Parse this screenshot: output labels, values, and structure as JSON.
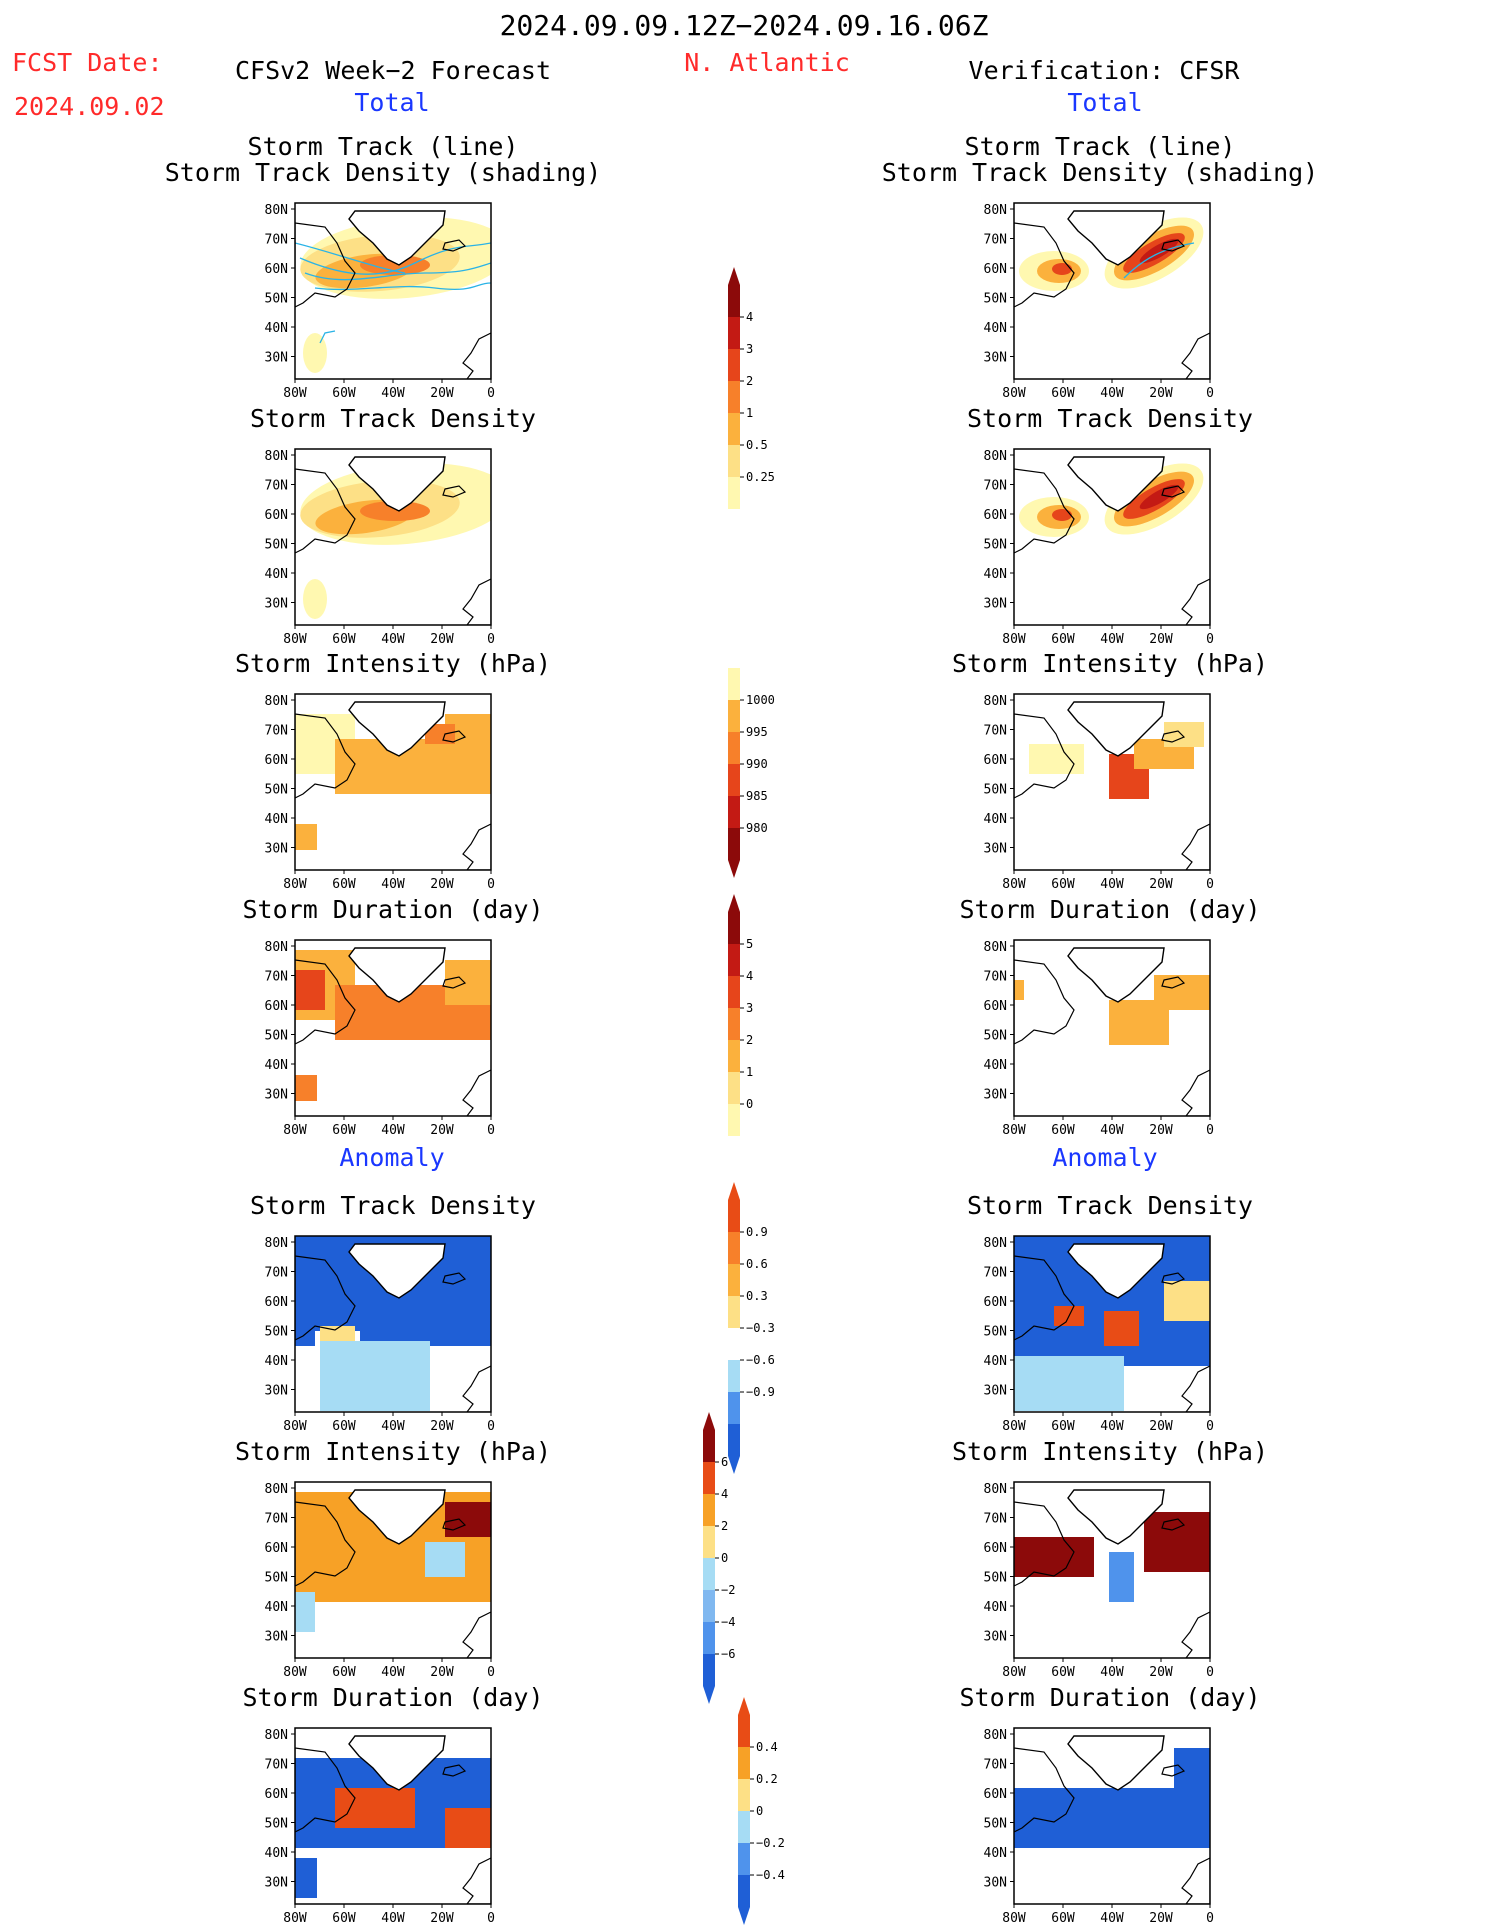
{
  "header": {
    "period": "2024.09.09.12Z−2024.09.16.06Z",
    "fcst_label": "FCST Date:",
    "fcst_date": "2024.09.02",
    "left_title": "CFSv2 Week−2 Forecast",
    "region": "N. Atlantic",
    "right_title": "Verification: CFSR",
    "total": "Total",
    "anomaly": "Anomaly"
  },
  "panel_titles": {
    "track_line": "Storm Track (line)",
    "track_density_shading": "Storm Track Density (shading)",
    "track_density": "Storm Track Density",
    "intensity": "Storm Intensity (hPa)",
    "duration": "Storm Duration (day)"
  },
  "axes": {
    "lat_labels": [
      "80N",
      "70N",
      "60N",
      "50N",
      "40N",
      "30N"
    ],
    "lon_labels": [
      "80W",
      "60W",
      "40W",
      "20W",
      "0"
    ]
  },
  "colorbars": {
    "density_total": [
      "4",
      "3",
      "2",
      "1",
      "0.5",
      "0.25"
    ],
    "intensity_total": [
      "1000",
      "995",
      "990",
      "985",
      "980"
    ],
    "duration_total": [
      "5",
      "4",
      "3",
      "2",
      "1",
      "0"
    ],
    "density_anom": [
      "0.9",
      "0.6",
      "0.3",
      "−0.3",
      "−0.6",
      "−0.9"
    ],
    "intensity_anom": [
      "6",
      "4",
      "2",
      "0",
      "−2",
      "−4",
      "−6"
    ],
    "duration_anom": [
      "0.4",
      "0.2",
      "0",
      "−0.2",
      "−0.4"
    ]
  },
  "colors": {
    "title_red": "#ff2a2a",
    "label_blue": "#1a37ff",
    "warm_scale": [
      "#fff8b0",
      "#fde086",
      "#fbb13d",
      "#f7802a",
      "#e6451b",
      "#c31a14",
      "#8c0a0a"
    ],
    "anom_scale": [
      "#1f5fd6",
      "#4f93ec",
      "#a6dcf4",
      "#ffffff",
      "#fde086",
      "#f7a126",
      "#e84c16"
    ]
  }
}
